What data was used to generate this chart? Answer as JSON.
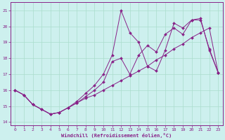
{
  "xlabel": "Windchill (Refroidissement éolien,°C)",
  "background_color": "#cdf0ee",
  "grid_color": "#aaddcc",
  "line_color": "#882288",
  "xlim": [
    -0.5,
    23.5
  ],
  "ylim": [
    13.8,
    21.5
  ],
  "xticks": [
    0,
    1,
    2,
    3,
    4,
    5,
    6,
    7,
    8,
    9,
    10,
    11,
    12,
    13,
    14,
    15,
    16,
    17,
    18,
    19,
    20,
    21,
    22,
    23
  ],
  "yticks": [
    14,
    15,
    16,
    17,
    18,
    19,
    20,
    21
  ],
  "series1_x": [
    0,
    1,
    2,
    3,
    4,
    5,
    6,
    7,
    8,
    9,
    10,
    11,
    12,
    13,
    14,
    15,
    16,
    17,
    18,
    19,
    20,
    21,
    22,
    23
  ],
  "series1_y": [
    16.0,
    15.7,
    15.1,
    14.8,
    14.5,
    14.6,
    14.9,
    15.2,
    15.5,
    15.7,
    16.0,
    16.3,
    16.6,
    16.9,
    17.2,
    17.5,
    17.9,
    18.2,
    18.6,
    18.9,
    19.3,
    19.6,
    19.9,
    17.1
  ],
  "series2_x": [
    0,
    1,
    2,
    3,
    4,
    5,
    6,
    7,
    8,
    9,
    10,
    11,
    12,
    13,
    14,
    15,
    16,
    17,
    18,
    19,
    20,
    21,
    22,
    23
  ],
  "series2_y": [
    16.0,
    15.7,
    15.1,
    14.8,
    14.5,
    14.6,
    14.9,
    15.2,
    15.6,
    16.0,
    16.5,
    17.8,
    18.0,
    17.0,
    18.2,
    18.8,
    18.4,
    19.5,
    19.9,
    19.5,
    20.4,
    20.4,
    18.6,
    17.1
  ],
  "series3_x": [
    0,
    1,
    2,
    3,
    4,
    5,
    6,
    7,
    8,
    9,
    10,
    11,
    12,
    13,
    14,
    15,
    16,
    17,
    18,
    19,
    20,
    21,
    22,
    23
  ],
  "series3_y": [
    16.0,
    15.7,
    15.1,
    14.8,
    14.5,
    14.6,
    14.9,
    15.3,
    15.8,
    16.3,
    17.0,
    18.2,
    21.0,
    19.6,
    19.0,
    17.5,
    17.2,
    18.5,
    20.2,
    19.9,
    20.4,
    20.5,
    18.5,
    17.1
  ]
}
